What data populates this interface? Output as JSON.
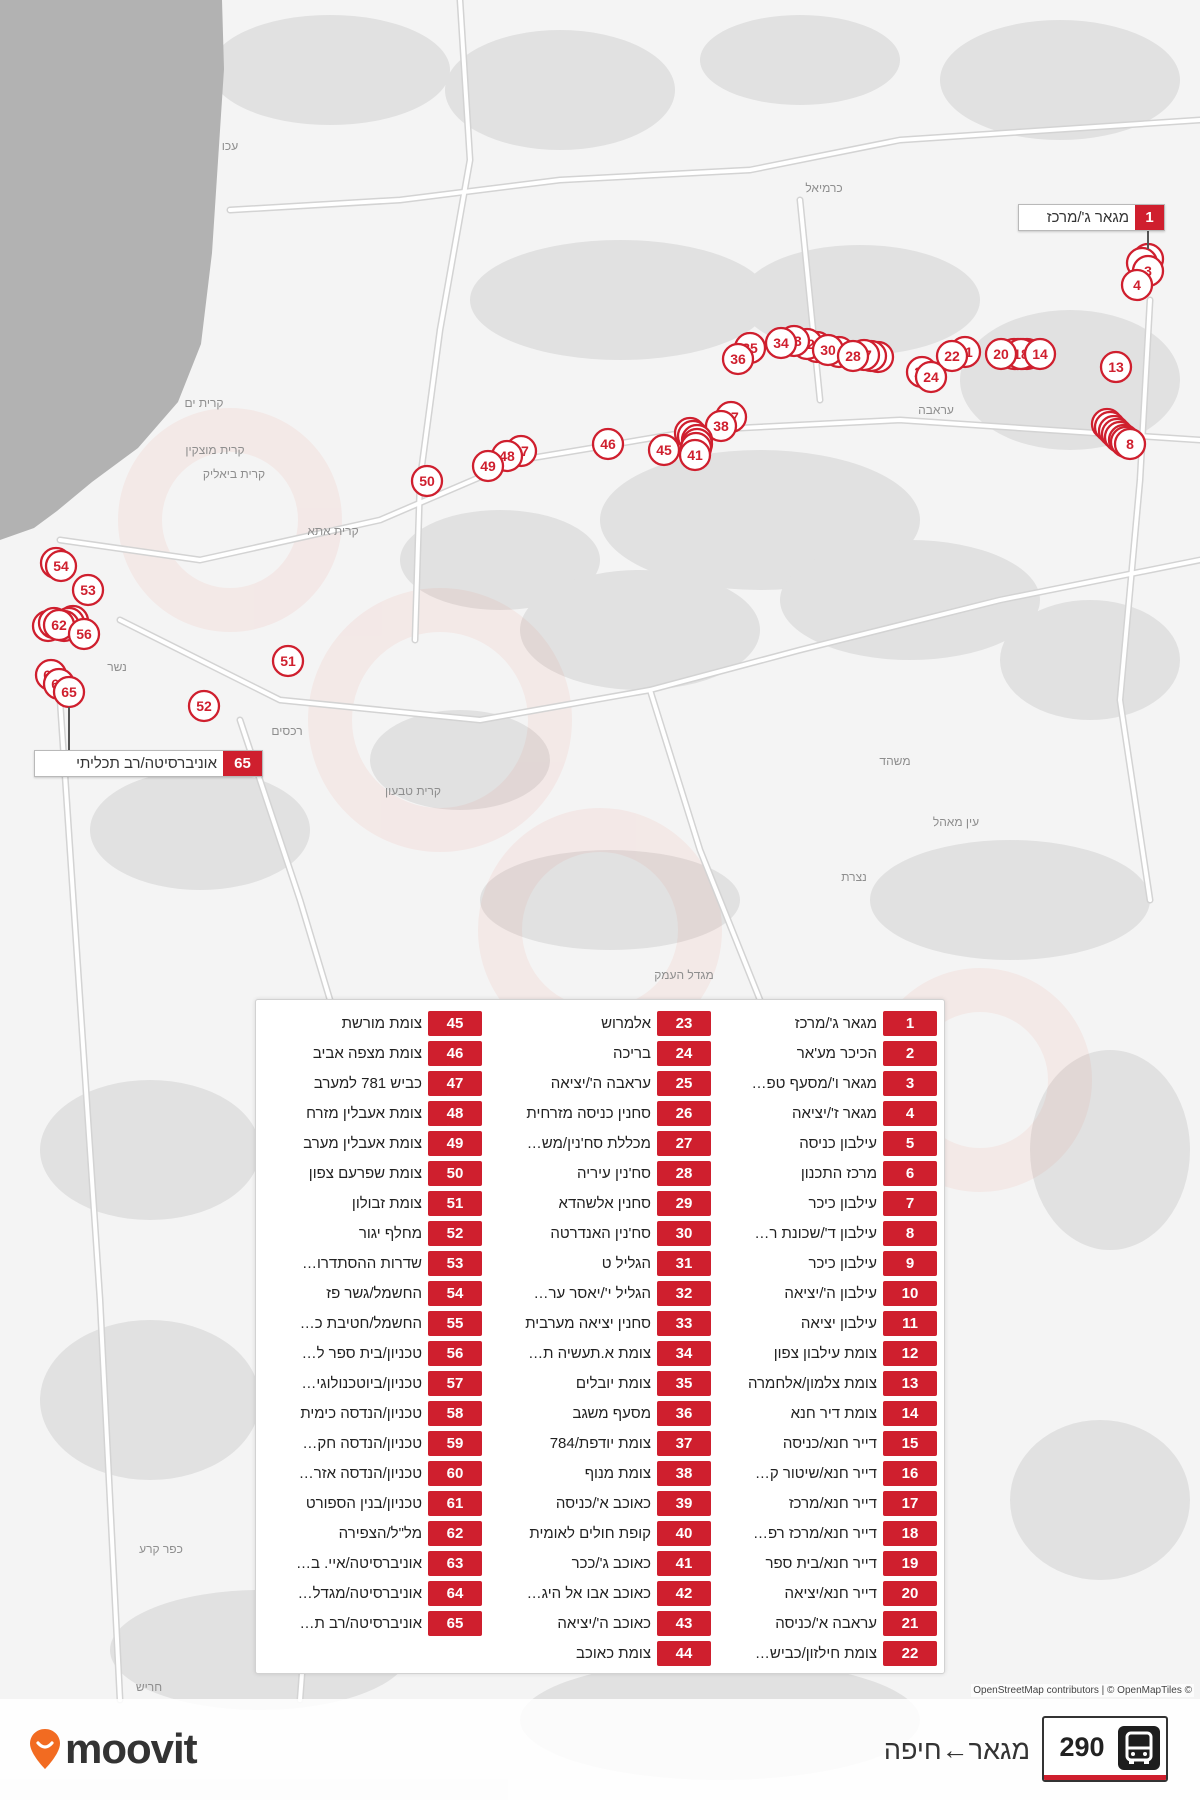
{
  "brand": {
    "name": "moovit",
    "icon": "moovit-pin-icon",
    "color": "#f26b21"
  },
  "route": {
    "number": "290",
    "direction": "מגאר←חיפה",
    "mode_icon": "bus-icon",
    "color": "#cf1f2e"
  },
  "map": {
    "place_labels": [
      "עכו",
      "כרמיאל",
      "עראבה",
      "קרית ים",
      "קרית מוצקין",
      "קרית ביאליק",
      "קרית אתא",
      "נשר",
      "רכסים",
      "קרית טבעון",
      "משהד",
      "עין מאהל",
      "נצרת",
      "מגדל העמק",
      "כפר קרע",
      "חריש"
    ],
    "start_label": {
      "number": "1",
      "name": "מגאר ג'/מרכז"
    },
    "end_label": {
      "number": "65",
      "name": "אוניברסיטה/רב תכליתי"
    },
    "stop_markers": [
      "1",
      "2",
      "3",
      "4",
      "5",
      "6",
      "7",
      "9",
      "10",
      "11",
      "12",
      "8",
      "13",
      "15",
      "16",
      "17",
      "19",
      "18",
      "20",
      "14",
      "21",
      "22",
      "23",
      "24",
      "25",
      "26",
      "27",
      "29",
      "31",
      "32",
      "33",
      "30",
      "28",
      "34",
      "35",
      "36",
      "37",
      "38",
      "39",
      "40",
      "42",
      "43",
      "44",
      "41",
      "45",
      "46",
      "47",
      "48",
      "49",
      "50",
      "51",
      "52",
      "53",
      "55",
      "54",
      "57",
      "58",
      "59",
      "60",
      "61",
      "62",
      "56",
      "63",
      "64",
      "65"
    ],
    "attribution": "OpenStreetMap contributors | © OpenMapTiles ©"
  },
  "stops": [
    {
      "number": "1",
      "name": "מגאר ג'/מרכז"
    },
    {
      "number": "2",
      "name": "הכיכר מע'אר"
    },
    {
      "number": "3",
      "name": "מגאר ו'/מסעף טפ…"
    },
    {
      "number": "4",
      "name": "מגאר ז'/יציאה"
    },
    {
      "number": "5",
      "name": "עילבון כניסה"
    },
    {
      "number": "6",
      "name": "מרכז התכנון"
    },
    {
      "number": "7",
      "name": "עילבון כיכר"
    },
    {
      "number": "8",
      "name": "עילבון ד'/שכונת ר…"
    },
    {
      "number": "9",
      "name": "עילבון כיכר"
    },
    {
      "number": "10",
      "name": "עילבון ה'/יציאה"
    },
    {
      "number": "11",
      "name": "עילבון יציאה"
    },
    {
      "number": "12",
      "name": "צומת עילבון צפון"
    },
    {
      "number": "13",
      "name": "צומת צלמון/אלחמרה"
    },
    {
      "number": "14",
      "name": "צומת דיר חנא"
    },
    {
      "number": "15",
      "name": "דייר חנא/כניסה"
    },
    {
      "number": "16",
      "name": "דייר חנא/שיטור ק…"
    },
    {
      "number": "17",
      "name": "דייר חנא/מרכז"
    },
    {
      "number": "18",
      "name": "דייר חנא/מרכז רפ…"
    },
    {
      "number": "19",
      "name": "דייר חנא/בית ספר"
    },
    {
      "number": "20",
      "name": "דייר חנא/יציאה"
    },
    {
      "number": "21",
      "name": "עראבה א'/כניסה"
    },
    {
      "number": "22",
      "name": "צומת חילזון/כביש…"
    },
    {
      "number": "23",
      "name": "אלמרוש"
    },
    {
      "number": "24",
      "name": "בריכה"
    },
    {
      "number": "25",
      "name": "עראבה ה'/יציאה"
    },
    {
      "number": "26",
      "name": "סחנין כניסה מזרחית"
    },
    {
      "number": "27",
      "name": "מכללת סח'נין/מש…"
    },
    {
      "number": "28",
      "name": "סח'נין עיריה"
    },
    {
      "number": "29",
      "name": "סחנין אלשהדא"
    },
    {
      "number": "30",
      "name": "סח'נין האנדרטה"
    },
    {
      "number": "31",
      "name": "הגליל ט"
    },
    {
      "number": "32",
      "name": "הגליל י'/יאסר ער…"
    },
    {
      "number": "33",
      "name": "סחנין יציאה מערבית"
    },
    {
      "number": "34",
      "name": "צומת א.תעשיה ת…"
    },
    {
      "number": "35",
      "name": "צומת יובלים"
    },
    {
      "number": "36",
      "name": "מסעף משגב"
    },
    {
      "number": "37",
      "name": "צומת יודפת/784"
    },
    {
      "number": "38",
      "name": "צומת מנוף"
    },
    {
      "number": "39",
      "name": "כאוכב א'/כניסה"
    },
    {
      "number": "40",
      "name": "קופת חולים לאומית"
    },
    {
      "number": "41",
      "name": "כאוכב ג'/ככר"
    },
    {
      "number": "42",
      "name": "כאוכב אבו אל היג…"
    },
    {
      "number": "43",
      "name": "כאוכב ה'/יציאה"
    },
    {
      "number": "44",
      "name": "צומת כאוכב"
    },
    {
      "number": "45",
      "name": "צומת מורשת"
    },
    {
      "number": "46",
      "name": "צומת מצפה אביב"
    },
    {
      "number": "47",
      "name": "כביש 781 למערב"
    },
    {
      "number": "48",
      "name": "צומת אעבלין מזרח"
    },
    {
      "number": "49",
      "name": "צומת אעבלין מערב"
    },
    {
      "number": "50",
      "name": "צומת שפרעם צפון"
    },
    {
      "number": "51",
      "name": "צומת זבולון"
    },
    {
      "number": "52",
      "name": "מחלף יגור"
    },
    {
      "number": "53",
      "name": "שדרות ההסתדרו…"
    },
    {
      "number": "54",
      "name": "החשמל/גשר פז"
    },
    {
      "number": "55",
      "name": "החשמל/חטיבת כ…"
    },
    {
      "number": "56",
      "name": "טכניון/בית ספר ל…"
    },
    {
      "number": "57",
      "name": "טכניון/ביוטכנולוגי…"
    },
    {
      "number": "58",
      "name": "טכניון/הנדסה כימית"
    },
    {
      "number": "59",
      "name": "טכניון/הנדסה חק…"
    },
    {
      "number": "60",
      "name": "טכניון/הנדסה אזר…"
    },
    {
      "number": "61",
      "name": "טכניון/בנין הספורט"
    },
    {
      "number": "62",
      "name": "מל\"ל/הצפירה"
    },
    {
      "number": "63",
      "name": "אוניברסיטה/איי. ב…"
    },
    {
      "number": "64",
      "name": "אוניברסיטה/מגדל…"
    },
    {
      "number": "65",
      "name": "אוניברסיטה/רב ת…"
    }
  ]
}
